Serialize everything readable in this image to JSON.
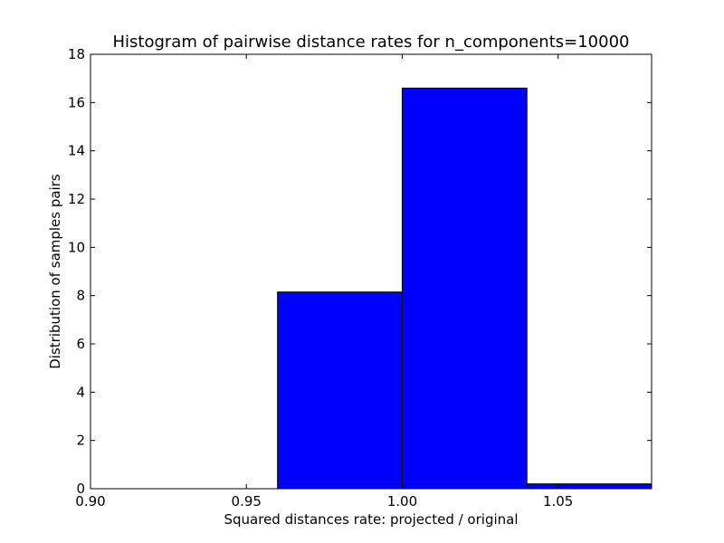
{
  "chart_data": {
    "type": "bar",
    "title": "Histogram of pairwise distance rates for n_components=10000",
    "xlabel": "Squared distances rate: projected / original",
    "ylabel": "Distribution of samples pairs",
    "xlim": [
      0.9,
      1.08
    ],
    "ylim": [
      0,
      18
    ],
    "bins": [
      {
        "x0": 0.96,
        "x1": 1.0,
        "value": 8.15
      },
      {
        "x0": 1.0,
        "x1": 1.04,
        "value": 16.6
      },
      {
        "x0": 1.04,
        "x1": 1.08,
        "value": 0.2
      }
    ],
    "bar_color": "#0000ff",
    "edge_color": "#000000",
    "x_ticks": [
      {
        "value": 0.9,
        "label": "0.90"
      },
      {
        "value": 0.95,
        "label": "0.95"
      },
      {
        "value": 1.0,
        "label": "1.00"
      },
      {
        "value": 1.05,
        "label": "1.05"
      }
    ],
    "y_ticks": [
      {
        "value": 0,
        "label": "0"
      },
      {
        "value": 2,
        "label": "2"
      },
      {
        "value": 4,
        "label": "4"
      },
      {
        "value": 6,
        "label": "6"
      },
      {
        "value": 8,
        "label": "8"
      },
      {
        "value": 10,
        "label": "10"
      },
      {
        "value": 12,
        "label": "12"
      },
      {
        "value": 14,
        "label": "14"
      },
      {
        "value": 16,
        "label": "16"
      },
      {
        "value": 18,
        "label": "18"
      }
    ],
    "grid": false,
    "legend": "none"
  }
}
